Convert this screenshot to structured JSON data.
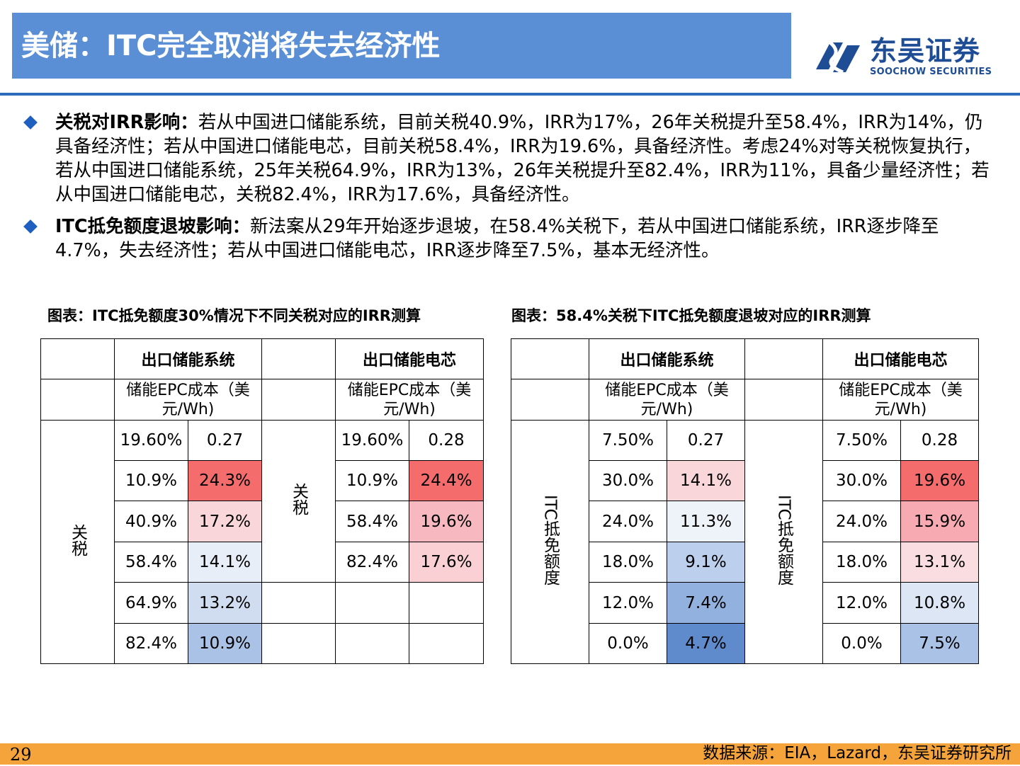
{
  "title": "美储：ITC完全取消将失去经济性",
  "logo": {
    "name_cn": "东吴证券",
    "name_en": "SOOCHOW SECURITIES"
  },
  "bullets": [
    {
      "label": "关税对IRR影响：",
      "text": "若从中国进口储能系统，目前关税40.9%，IRR为17%，26年关税提升至58.4%，IRR为14%，仍具备经济性；若从中国进口储能电芯，目前关税58.4%，IRR为19.6%，具备经济性。考虑24%对等关税恢复执行，若从中国进口储能系统，25年关税64.9%，IRR为13%，26年关税提升至82.4%，IRR为11%，具备少量经济性；若从中国进口储能电芯，关税82.4%，IRR为17.6%，具备经济性。"
    },
    {
      "label": "ITC抵免额度退坡影响：",
      "text": "新法案从29年开始逐步退坡，在58.4%关税下，若从中国进口储能系统，IRR逐步降至4.7%，失去经济性；若从中国进口储能电芯，IRR逐步降至7.5%，基本无经济性。"
    }
  ],
  "table1": {
    "caption": "图表：ITC抵免额度30%情况下不同关税对应的IRR测算",
    "group_left": "出口储能系统",
    "group_right": "出口储能电芯",
    "cost_label": "储能EPC成本（美元/Wh)",
    "row_axis_left": "关税",
    "row_axis_right": "关税",
    "left_head": [
      "19.60%",
      "0.27"
    ],
    "right_head": [
      "19.60%",
      "0.28"
    ],
    "left_rows": [
      [
        "10.9%",
        "24.3%"
      ],
      [
        "40.9%",
        "17.2%"
      ],
      [
        "58.4%",
        "14.1%"
      ],
      [
        "64.9%",
        "13.2%"
      ],
      [
        "82.4%",
        "10.9%"
      ]
    ],
    "right_rows": [
      [
        "10.9%",
        "24.4%"
      ],
      [
        "58.4%",
        "19.6%"
      ],
      [
        "82.4%",
        "17.6%"
      ]
    ],
    "left_colors": [
      "#f46c6c",
      "#f9d6da",
      "#e8eef8",
      "#d0ddf0",
      "#a9c2e6"
    ],
    "right_colors": [
      "#f46c6c",
      "#f8b8bf",
      "#fad0d5"
    ]
  },
  "table2": {
    "caption": "图表：58.4%关税下ITC抵免额度退坡对应的IRR测算",
    "group_left": "出口储能系统",
    "group_right": "出口储能电芯",
    "cost_label": "储能EPC成本（美元/Wh)",
    "row_axis": "ITC抵免额度",
    "left_head": [
      "7.50%",
      "0.27"
    ],
    "right_head": [
      "7.50%",
      "0.28"
    ],
    "left_rows": [
      [
        "30.0%",
        "14.1%"
      ],
      [
        "24.0%",
        "11.3%"
      ],
      [
        "18.0%",
        "9.1%"
      ],
      [
        "12.0%",
        "7.4%"
      ],
      [
        "0.0%",
        "4.7%"
      ]
    ],
    "right_rows": [
      [
        "30.0%",
        "19.6%"
      ],
      [
        "24.0%",
        "15.9%"
      ],
      [
        "18.0%",
        "13.1%"
      ],
      [
        "12.0%",
        "10.8%"
      ],
      [
        "0.0%",
        "7.5%"
      ]
    ],
    "left_colors": [
      "#f9d6da",
      "#eef2f9",
      "#bccfec",
      "#92b1df",
      "#5f8bcc"
    ],
    "right_colors": [
      "#f46c6c",
      "#f8aab2",
      "#f9dde0",
      "#dde6f4",
      "#a9c2e6"
    ]
  },
  "footer": {
    "page": "29",
    "source": "数据来源：EIA，Lazard，东吴证券研究所"
  }
}
